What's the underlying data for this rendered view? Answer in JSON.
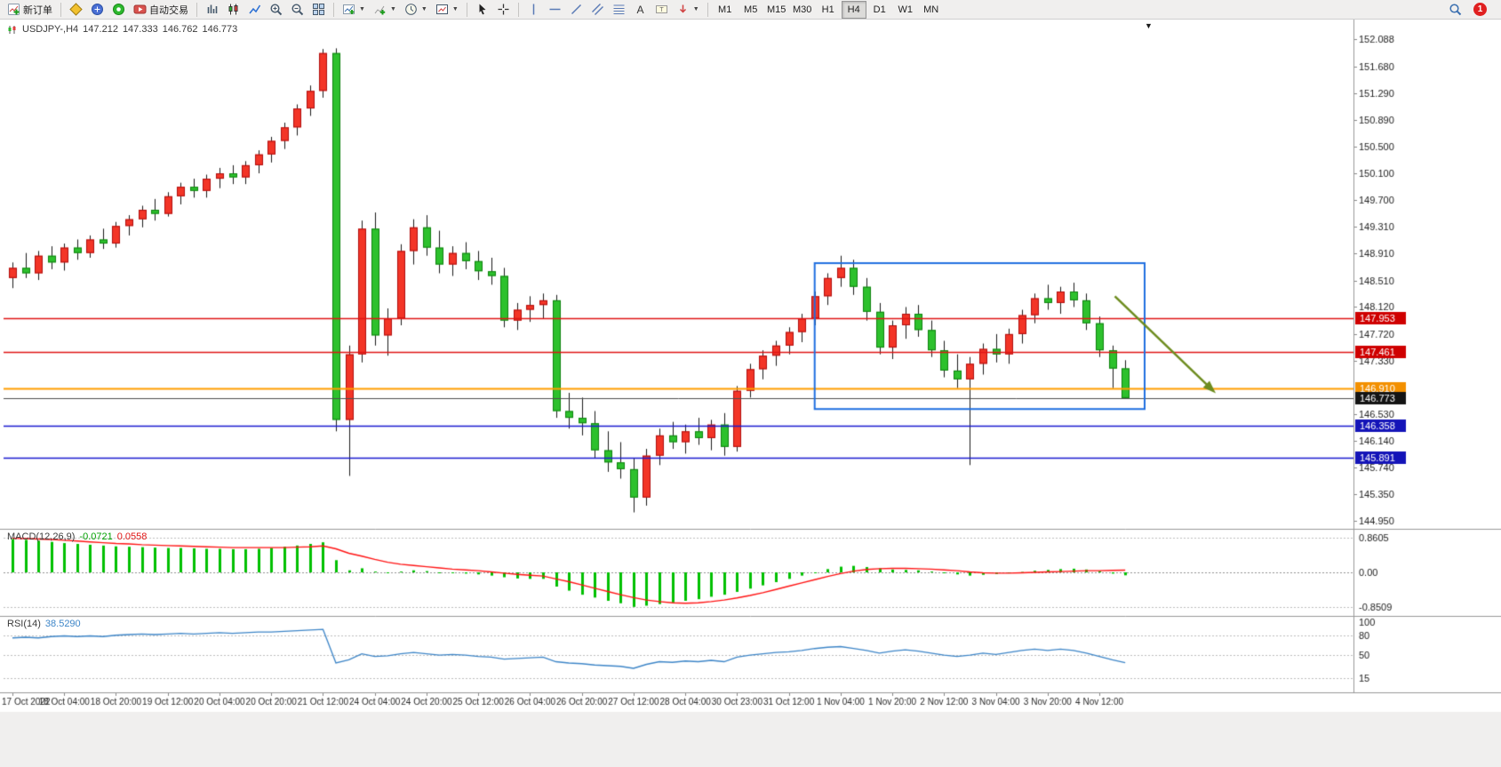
{
  "toolbar": {
    "new_order": "新订单",
    "autotrading": "自动交易",
    "timeframes": [
      "M1",
      "M5",
      "M15",
      "M30",
      "H1",
      "H4",
      "D1",
      "W1",
      "MN"
    ],
    "active_timeframe": "H4",
    "notification_count": "1"
  },
  "chart": {
    "quote_line": {
      "symbol": "USDJPY-,H4",
      "open": "147.212",
      "high": "147.333",
      "low": "146.762",
      "close": "146.773"
    },
    "macd_label": {
      "name": "MACD(12,26,9)",
      "main_value": "-0.0721",
      "signal_value": "0.0558"
    },
    "rsi_label": {
      "name": "RSI(14)",
      "value": "38.5290"
    }
  },
  "chart_data": {
    "type": "candlestick",
    "symbol": "USDJPY",
    "timeframe": "H4",
    "ylim": [
      144.85,
      152.35
    ],
    "price_axis_labels": [
      "152.088",
      "151.680",
      "151.290",
      "150.890",
      "150.500",
      "150.100",
      "149.700",
      "149.310",
      "148.910",
      "148.510",
      "148.120",
      "147.720",
      "147.330",
      "146.530",
      "146.140",
      "145.740",
      "145.350",
      "144.950"
    ],
    "date_labels": [
      "17 Oct 2022",
      "18 Oct 04:00",
      "18 Oct 20:00",
      "19 Oct 12:00",
      "20 Oct 04:00",
      "20 Oct 20:00",
      "21 Oct 12:00",
      "24 Oct 04:00",
      "24 Oct 20:00",
      "25 Oct 12:00",
      "26 Oct 04:00",
      "26 Oct 20:00",
      "27 Oct 12:00",
      "28 Oct 04:00",
      "30 Oct 23:00",
      "31 Oct 12:00",
      "1 Nov 04:00",
      "1 Nov 20:00",
      "2 Nov 12:00",
      "3 Nov 04:00",
      "3 Nov 20:00",
      "4 Nov 12:00"
    ],
    "colors": {
      "bull": "#f33527",
      "bull_border": "#b00d0d",
      "bear": "#2dc12d",
      "bear_border": "#0e820e",
      "wick": "#1a1a1a"
    },
    "candles": [
      [
        148.55,
        148.78,
        148.4,
        148.7
      ],
      [
        148.7,
        148.92,
        148.55,
        148.62
      ],
      [
        148.62,
        148.95,
        148.52,
        148.88
      ],
      [
        148.88,
        149.02,
        148.68,
        148.78
      ],
      [
        148.78,
        149.06,
        148.66,
        149.0
      ],
      [
        149.0,
        149.12,
        148.82,
        148.92
      ],
      [
        148.92,
        149.18,
        148.85,
        149.12
      ],
      [
        149.12,
        149.28,
        148.98,
        149.06
      ],
      [
        149.06,
        149.38,
        149.0,
        149.32
      ],
      [
        149.32,
        149.48,
        149.18,
        149.42
      ],
      [
        149.42,
        149.62,
        149.3,
        149.56
      ],
      [
        149.56,
        149.72,
        149.4,
        149.5
      ],
      [
        149.5,
        149.82,
        149.46,
        149.76
      ],
      [
        149.76,
        149.96,
        149.64,
        149.9
      ],
      [
        149.9,
        150.02,
        149.74,
        149.84
      ],
      [
        149.84,
        150.08,
        149.74,
        150.02
      ],
      [
        150.02,
        150.18,
        149.88,
        150.1
      ],
      [
        150.1,
        150.22,
        149.94,
        150.04
      ],
      [
        150.04,
        150.28,
        149.94,
        150.22
      ],
      [
        150.22,
        150.44,
        150.1,
        150.38
      ],
      [
        150.38,
        150.64,
        150.26,
        150.58
      ],
      [
        150.58,
        150.85,
        150.46,
        150.78
      ],
      [
        150.78,
        151.12,
        150.66,
        151.06
      ],
      [
        151.06,
        151.4,
        150.95,
        151.32
      ],
      [
        151.32,
        151.94,
        151.22,
        151.88
      ],
      [
        151.88,
        151.95,
        146.28,
        146.45
      ],
      [
        146.45,
        147.55,
        145.62,
        147.42
      ],
      [
        147.42,
        149.4,
        147.3,
        149.28
      ],
      [
        149.28,
        149.52,
        147.55,
        147.7
      ],
      [
        147.7,
        148.1,
        147.4,
        147.95
      ],
      [
        147.95,
        149.05,
        147.85,
        148.95
      ],
      [
        148.95,
        149.42,
        148.75,
        149.3
      ],
      [
        149.3,
        149.48,
        148.88,
        149.0
      ],
      [
        149.0,
        149.25,
        148.62,
        148.75
      ],
      [
        148.75,
        149.02,
        148.58,
        148.92
      ],
      [
        148.92,
        149.08,
        148.68,
        148.8
      ],
      [
        148.8,
        148.95,
        148.52,
        148.65
      ],
      [
        148.65,
        148.85,
        148.45,
        148.58
      ],
      [
        148.58,
        148.7,
        147.82,
        147.92
      ],
      [
        147.92,
        148.18,
        147.78,
        148.08
      ],
      [
        148.08,
        148.28,
        147.9,
        148.15
      ],
      [
        148.15,
        148.32,
        147.95,
        148.22
      ],
      [
        148.22,
        148.3,
        146.48,
        146.58
      ],
      [
        146.58,
        146.85,
        146.32,
        146.48
      ],
      [
        146.48,
        146.78,
        146.22,
        146.4
      ],
      [
        146.4,
        146.58,
        145.88,
        146.0
      ],
      [
        146.0,
        146.28,
        145.68,
        145.82
      ],
      [
        145.82,
        146.12,
        145.58,
        145.72
      ],
      [
        145.72,
        145.88,
        145.08,
        145.3
      ],
      [
        145.3,
        146.02,
        145.18,
        145.92
      ],
      [
        145.92,
        146.32,
        145.78,
        146.22
      ],
      [
        146.22,
        146.42,
        146.02,
        146.12
      ],
      [
        146.12,
        146.38,
        145.95,
        146.28
      ],
      [
        146.28,
        146.48,
        146.08,
        146.18
      ],
      [
        146.18,
        146.45,
        146.0,
        146.38
      ],
      [
        146.38,
        146.55,
        145.92,
        146.05
      ],
      [
        146.05,
        146.95,
        145.98,
        146.88
      ],
      [
        146.88,
        147.28,
        146.78,
        147.2
      ],
      [
        147.2,
        147.48,
        147.05,
        147.4
      ],
      [
        147.4,
        147.62,
        147.25,
        147.55
      ],
      [
        147.55,
        147.82,
        147.42,
        147.75
      ],
      [
        147.75,
        148.02,
        147.6,
        147.95
      ],
      [
        147.95,
        148.35,
        147.85,
        148.28
      ],
      [
        148.28,
        148.62,
        148.15,
        148.55
      ],
      [
        148.55,
        148.88,
        148.42,
        148.7
      ],
      [
        148.7,
        148.82,
        148.3,
        148.42
      ],
      [
        148.42,
        148.55,
        147.92,
        148.05
      ],
      [
        148.05,
        148.18,
        147.42,
        147.52
      ],
      [
        147.52,
        147.92,
        147.35,
        147.85
      ],
      [
        147.85,
        148.12,
        147.65,
        148.02
      ],
      [
        148.02,
        148.15,
        147.68,
        147.78
      ],
      [
        147.78,
        147.92,
        147.38,
        147.48
      ],
      [
        147.48,
        147.62,
        147.08,
        147.18
      ],
      [
        147.18,
        147.42,
        146.92,
        147.05
      ],
      [
        147.05,
        147.38,
        145.78,
        147.28
      ],
      [
        147.28,
        147.58,
        147.12,
        147.5
      ],
      [
        147.5,
        147.72,
        147.3,
        147.42
      ],
      [
        147.42,
        147.8,
        147.28,
        147.72
      ],
      [
        147.72,
        148.08,
        147.58,
        148.0
      ],
      [
        148.0,
        148.32,
        147.88,
        148.25
      ],
      [
        148.25,
        148.45,
        148.08,
        148.18
      ],
      [
        148.18,
        148.42,
        148.02,
        148.35
      ],
      [
        148.35,
        148.48,
        148.12,
        148.22
      ],
      [
        148.22,
        148.32,
        147.78,
        147.88
      ],
      [
        147.88,
        147.98,
        147.38,
        147.48
      ],
      [
        147.48,
        147.55,
        146.92,
        147.21
      ],
      [
        147.212,
        147.333,
        146.762,
        146.773
      ]
    ],
    "hlines": [
      {
        "price": 147.953,
        "label": "147.953",
        "color": "#e01515",
        "tag": "#cf0000",
        "lw": 1.5
      },
      {
        "price": 147.461,
        "label": "147.461",
        "color": "#e01515",
        "tag": "#cf0000",
        "lw": 1.5
      },
      {
        "price": 146.91,
        "label": "146.910",
        "color": "#ff9d00",
        "tag": "#f39000",
        "lw": 2
      },
      {
        "price": 146.773,
        "label": "146.773",
        "color": "#4d4d4d",
        "tag": "#141414",
        "lw": 1
      },
      {
        "price": 146.358,
        "label": "146.358",
        "color": "#1a1ad0",
        "tag": "#1414b8",
        "lw": 1.5
      },
      {
        "price": 145.891,
        "label": "145.891",
        "color": "#1a1ad0",
        "tag": "#1414b8",
        "lw": 1.5
      }
    ],
    "annotations": {
      "rectangle": {
        "bar_start": 62,
        "bar_end": 87.5,
        "price_top": 148.77,
        "price_bottom": 146.61,
        "color": "#1f6fe0"
      },
      "arrow": {
        "from_bar": 85.2,
        "from_price": 148.28,
        "to_bar": 92.8,
        "to_price": 146.88,
        "color": "#6d8c1e"
      }
    },
    "macd": {
      "axis_labels": [
        "0.8605",
        "0.00",
        "-0.8509"
      ],
      "axis_values": [
        0.8605,
        0,
        -0.8509
      ],
      "histogram_color": "#00c000",
      "signal_color": "#ff1414",
      "histogram": [
        0.82,
        0.8,
        0.78,
        0.75,
        0.72,
        0.7,
        0.68,
        0.66,
        0.64,
        0.63,
        0.62,
        0.61,
        0.6,
        0.6,
        0.59,
        0.58,
        0.58,
        0.57,
        0.57,
        0.58,
        0.6,
        0.63,
        0.66,
        0.7,
        0.74,
        0.3,
        0.05,
        0.1,
        0.02,
        -0.02,
        0.02,
        0.05,
        0.03,
        -0.01,
        -0.02,
        -0.03,
        -0.05,
        -0.08,
        -0.12,
        -0.15,
        -0.16,
        -0.16,
        -0.35,
        -0.45,
        -0.55,
        -0.62,
        -0.7,
        -0.76,
        -0.85,
        -0.82,
        -0.78,
        -0.74,
        -0.7,
        -0.66,
        -0.6,
        -0.55,
        -0.48,
        -0.4,
        -0.32,
        -0.24,
        -0.16,
        -0.08,
        0.0,
        0.08,
        0.14,
        0.16,
        0.13,
        0.1,
        0.07,
        0.06,
        0.05,
        0.02,
        -0.02,
        -0.05,
        -0.08,
        -0.06,
        -0.04,
        -0.02,
        0.01,
        0.04,
        0.06,
        0.08,
        0.09,
        0.07,
        0.03,
        -0.03,
        -0.0721
      ],
      "signal": [
        0.84,
        0.83,
        0.82,
        0.81,
        0.79,
        0.77,
        0.75,
        0.73,
        0.71,
        0.7,
        0.68,
        0.67,
        0.66,
        0.65,
        0.64,
        0.63,
        0.62,
        0.61,
        0.61,
        0.61,
        0.61,
        0.61,
        0.62,
        0.63,
        0.65,
        0.58,
        0.47,
        0.4,
        0.32,
        0.25,
        0.2,
        0.17,
        0.14,
        0.11,
        0.08,
        0.06,
        0.04,
        0.01,
        -0.02,
        -0.05,
        -0.07,
        -0.09,
        -0.16,
        -0.23,
        -0.31,
        -0.39,
        -0.47,
        -0.55,
        -0.62,
        -0.68,
        -0.72,
        -0.75,
        -0.76,
        -0.75,
        -0.72,
        -0.68,
        -0.63,
        -0.57,
        -0.5,
        -0.42,
        -0.34,
        -0.26,
        -0.18,
        -0.1,
        -0.03,
        0.03,
        0.07,
        0.09,
        0.1,
        0.1,
        0.09,
        0.08,
        0.06,
        0.04,
        0.01,
        -0.01,
        -0.02,
        -0.02,
        -0.01,
        0.0,
        0.01,
        0.02,
        0.03,
        0.04,
        0.04,
        0.05,
        0.0558
      ]
    },
    "rsi": {
      "axis_labels": [
        "100",
        "80",
        "50",
        "15"
      ],
      "axis_values": [
        100,
        80,
        50,
        15
      ],
      "levels": [
        80,
        50,
        15
      ],
      "line_color": "#3e86c8",
      "values": [
        76,
        77,
        76,
        78,
        79,
        78,
        79,
        78,
        80,
        81,
        82,
        81,
        82,
        83,
        82,
        83,
        84,
        83,
        84,
        85,
        85,
        86,
        87,
        88,
        89,
        38,
        43,
        52,
        48,
        49,
        52,
        54,
        52,
        50,
        51,
        50,
        48,
        47,
        44,
        45,
        46,
        47,
        40,
        38,
        37,
        35,
        34,
        33,
        30,
        36,
        40,
        39,
        41,
        40,
        42,
        40,
        47,
        50,
        52,
        54,
        55,
        57,
        60,
        62,
        63,
        60,
        57,
        53,
        56,
        58,
        56,
        53,
        50,
        48,
        50,
        53,
        51,
        54,
        57,
        59,
        57,
        59,
        57,
        53,
        48,
        43,
        38.53
      ]
    }
  }
}
